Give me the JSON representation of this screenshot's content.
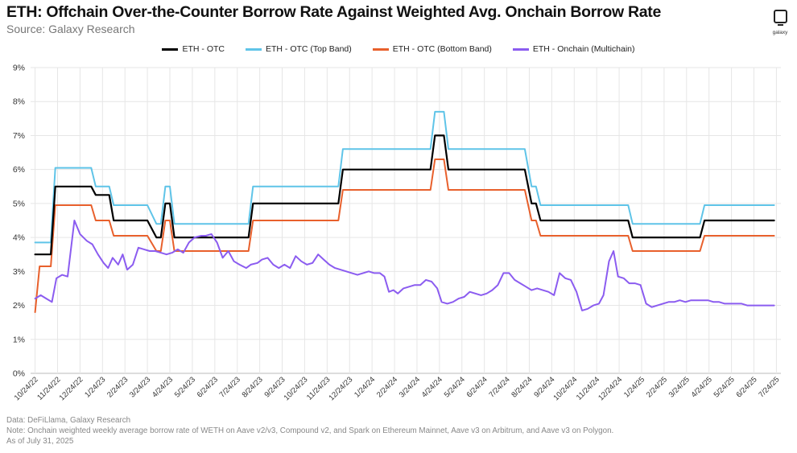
{
  "title": "ETH: Offchain Over-the-Counter Borrow Rate Against Weighted Avg. Onchain Borrow Rate",
  "subtitle": "Source: Galaxy Research",
  "logo": {
    "text": "galaxy",
    "icon": "galaxy-logo-icon"
  },
  "footnotes": {
    "data_source": "Data: DeFiLlama, Galaxy Research",
    "note": "Note: Onchain weighted weekly average borrow rate of WETH on Aave v2/v3, Compound v2, and Spark on Ethereum Mainnet, Aave v3 on Arbitrum, and Aave v3 on Polygon.",
    "as_of": "As of July 31, 2025"
  },
  "chart_data": {
    "type": "line",
    "title": "ETH: Offchain Over-the-Counter Borrow Rate Against Weighted Avg. Onchain Borrow Rate",
    "xlabel": "",
    "ylabel": "",
    "x_unit": "months since 10/24/22",
    "xlim": [
      -0.2,
      33.2
    ],
    "ylim": [
      0,
      9
    ],
    "y_ticks": [
      0,
      1,
      2,
      3,
      4,
      5,
      6,
      7,
      8,
      9
    ],
    "y_tick_labels": [
      "0%",
      "1%",
      "2%",
      "3%",
      "4%",
      "5%",
      "6%",
      "7%",
      "8%",
      "9%"
    ],
    "x_tick_labels": [
      "10/24/22",
      "11/24/22",
      "12/24/22",
      "1/24/23",
      "2/24/23",
      "3/24/23",
      "4/24/23",
      "5/24/23",
      "6/24/23",
      "7/24/23",
      "8/24/23",
      "9/24/23",
      "10/24/23",
      "11/24/23",
      "12/24/23",
      "1/24/24",
      "2/24/24",
      "3/24/24",
      "4/24/24",
      "5/24/24",
      "6/24/24",
      "7/24/24",
      "8/24/24",
      "9/24/24",
      "10/24/24",
      "11/24/24",
      "12/24/24",
      "1/24/25",
      "2/24/25",
      "3/24/25",
      "4/24/25",
      "5/24/25",
      "6/24/25",
      "7/24/25"
    ],
    "grid": true,
    "legend_position": "top-center",
    "series": [
      {
        "name": "ETH - OTC",
        "color": "#000000",
        "points": [
          [
            0,
            3.5
          ],
          [
            0.7,
            3.5
          ],
          [
            0.9,
            5.5
          ],
          [
            2.5,
            5.5
          ],
          [
            2.7,
            5.25
          ],
          [
            3.3,
            5.25
          ],
          [
            3.5,
            4.5
          ],
          [
            4.3,
            4.5
          ],
          [
            5,
            4.5
          ],
          [
            5.4,
            4
          ],
          [
            5.6,
            4
          ],
          [
            5.8,
            5
          ],
          [
            6,
            5
          ],
          [
            6.2,
            4
          ],
          [
            8.8,
            4
          ],
          [
            9.5,
            4
          ],
          [
            9.7,
            5
          ],
          [
            13.5,
            5
          ],
          [
            13.7,
            6
          ],
          [
            17.6,
            6
          ],
          [
            17.8,
            7
          ],
          [
            18.2,
            7
          ],
          [
            18.4,
            6
          ],
          [
            21.8,
            6
          ],
          [
            22.1,
            5
          ],
          [
            22.3,
            5
          ],
          [
            22.5,
            4.5
          ],
          [
            26.4,
            4.5
          ],
          [
            26.6,
            4
          ],
          [
            29.6,
            4
          ],
          [
            29.8,
            4.5
          ],
          [
            32.9,
            4.5
          ]
        ]
      },
      {
        "name": "ETH - OTC (Top Band)",
        "color": "#5fc4e8",
        "points": [
          [
            0,
            3.85
          ],
          [
            0.7,
            3.85
          ],
          [
            0.9,
            6.05
          ],
          [
            2.5,
            6.05
          ],
          [
            2.7,
            5.5
          ],
          [
            3.3,
            5.5
          ],
          [
            3.5,
            4.95
          ],
          [
            5,
            4.95
          ],
          [
            5.4,
            4.4
          ],
          [
            5.6,
            4.4
          ],
          [
            5.8,
            5.5
          ],
          [
            6,
            5.5
          ],
          [
            6.2,
            4.4
          ],
          [
            8.8,
            4.4
          ],
          [
            9.5,
            4.4
          ],
          [
            9.7,
            5.5
          ],
          [
            13.5,
            5.5
          ],
          [
            13.7,
            6.6
          ],
          [
            17.6,
            6.6
          ],
          [
            17.8,
            7.7
          ],
          [
            18.2,
            7.7
          ],
          [
            18.4,
            6.6
          ],
          [
            21.8,
            6.6
          ],
          [
            22.1,
            5.5
          ],
          [
            22.3,
            5.5
          ],
          [
            22.5,
            4.95
          ],
          [
            26.4,
            4.95
          ],
          [
            26.6,
            4.4
          ],
          [
            29.6,
            4.4
          ],
          [
            29.8,
            4.95
          ],
          [
            32.9,
            4.95
          ]
        ]
      },
      {
        "name": "ETH - OTC (Bottom Band)",
        "color": "#e8602c",
        "points": [
          [
            0,
            1.8
          ],
          [
            0.2,
            3.15
          ],
          [
            0.7,
            3.15
          ],
          [
            0.9,
            4.95
          ],
          [
            2.5,
            4.95
          ],
          [
            2.7,
            4.5
          ],
          [
            3.3,
            4.5
          ],
          [
            3.5,
            4.05
          ],
          [
            5,
            4.05
          ],
          [
            5.4,
            3.6
          ],
          [
            5.6,
            3.6
          ],
          [
            5.8,
            4.5
          ],
          [
            6,
            4.5
          ],
          [
            6.2,
            3.6
          ],
          [
            8.8,
            3.6
          ],
          [
            9.5,
            3.6
          ],
          [
            9.7,
            4.5
          ],
          [
            13.5,
            4.5
          ],
          [
            13.7,
            5.4
          ],
          [
            17.6,
            5.4
          ],
          [
            17.8,
            6.3
          ],
          [
            18.2,
            6.3
          ],
          [
            18.4,
            5.4
          ],
          [
            21.8,
            5.4
          ],
          [
            22.1,
            4.5
          ],
          [
            22.3,
            4.5
          ],
          [
            22.5,
            4.05
          ],
          [
            26.4,
            4.05
          ],
          [
            26.6,
            3.6
          ],
          [
            29.6,
            3.6
          ],
          [
            29.8,
            4.05
          ],
          [
            32.9,
            4.05
          ]
        ]
      },
      {
        "name": "ETH - Onchain (Multichain)",
        "color": "#8b5cf0",
        "points": [
          [
            0,
            2.2
          ],
          [
            0.25,
            2.3
          ],
          [
            0.5,
            2.2
          ],
          [
            0.75,
            2.1
          ],
          [
            0.95,
            2.8
          ],
          [
            1.2,
            2.9
          ],
          [
            1.45,
            2.85
          ],
          [
            1.75,
            4.5
          ],
          [
            2.0,
            4.1
          ],
          [
            2.3,
            3.9
          ],
          [
            2.55,
            3.8
          ],
          [
            2.8,
            3.5
          ],
          [
            3.05,
            3.25
          ],
          [
            3.25,
            3.1
          ],
          [
            3.45,
            3.4
          ],
          [
            3.7,
            3.2
          ],
          [
            3.9,
            3.5
          ],
          [
            4.1,
            3.05
          ],
          [
            4.35,
            3.2
          ],
          [
            4.6,
            3.7
          ],
          [
            4.85,
            3.65
          ],
          [
            5.1,
            3.6
          ],
          [
            5.35,
            3.6
          ],
          [
            5.6,
            3.55
          ],
          [
            5.85,
            3.5
          ],
          [
            6.1,
            3.55
          ],
          [
            6.35,
            3.65
          ],
          [
            6.6,
            3.55
          ],
          [
            6.85,
            3.85
          ],
          [
            7.1,
            4.0
          ],
          [
            7.4,
            4.05
          ],
          [
            7.6,
            4.05
          ],
          [
            7.85,
            4.1
          ],
          [
            8.1,
            3.85
          ],
          [
            8.35,
            3.4
          ],
          [
            8.6,
            3.6
          ],
          [
            8.85,
            3.3
          ],
          [
            9.1,
            3.2
          ],
          [
            9.4,
            3.1
          ],
          [
            9.6,
            3.2
          ],
          [
            9.9,
            3.25
          ],
          [
            10.1,
            3.35
          ],
          [
            10.35,
            3.4
          ],
          [
            10.6,
            3.2
          ],
          [
            10.85,
            3.1
          ],
          [
            11.1,
            3.2
          ],
          [
            11.35,
            3.1
          ],
          [
            11.6,
            3.45
          ],
          [
            11.85,
            3.3
          ],
          [
            12.1,
            3.2
          ],
          [
            12.35,
            3.25
          ],
          [
            12.6,
            3.5
          ],
          [
            12.85,
            3.35
          ],
          [
            13.1,
            3.2
          ],
          [
            13.35,
            3.1
          ],
          [
            13.6,
            3.05
          ],
          [
            13.85,
            3.0
          ],
          [
            14.1,
            2.95
          ],
          [
            14.35,
            2.9
          ],
          [
            14.6,
            2.95
          ],
          [
            14.85,
            3.0
          ],
          [
            15.1,
            2.95
          ],
          [
            15.35,
            2.95
          ],
          [
            15.55,
            2.85
          ],
          [
            15.75,
            2.4
          ],
          [
            15.95,
            2.45
          ],
          [
            16.15,
            2.35
          ],
          [
            16.4,
            2.5
          ],
          [
            16.65,
            2.55
          ],
          [
            16.9,
            2.6
          ],
          [
            17.15,
            2.6
          ],
          [
            17.4,
            2.75
          ],
          [
            17.65,
            2.7
          ],
          [
            17.9,
            2.5
          ],
          [
            18.1,
            2.1
          ],
          [
            18.35,
            2.05
          ],
          [
            18.6,
            2.1
          ],
          [
            18.85,
            2.2
          ],
          [
            19.1,
            2.25
          ],
          [
            19.35,
            2.4
          ],
          [
            19.6,
            2.35
          ],
          [
            19.85,
            2.3
          ],
          [
            20.1,
            2.35
          ],
          [
            20.35,
            2.45
          ],
          [
            20.6,
            2.6
          ],
          [
            20.85,
            2.95
          ],
          [
            21.1,
            2.95
          ],
          [
            21.35,
            2.75
          ],
          [
            21.6,
            2.65
          ],
          [
            21.85,
            2.55
          ],
          [
            22.1,
            2.45
          ],
          [
            22.35,
            2.5
          ],
          [
            22.6,
            2.45
          ],
          [
            22.85,
            2.4
          ],
          [
            23.1,
            2.3
          ],
          [
            23.35,
            2.95
          ],
          [
            23.6,
            2.8
          ],
          [
            23.85,
            2.75
          ],
          [
            24.1,
            2.4
          ],
          [
            24.35,
            1.85
          ],
          [
            24.6,
            1.9
          ],
          [
            24.85,
            2.0
          ],
          [
            25.1,
            2.05
          ],
          [
            25.3,
            2.3
          ],
          [
            25.55,
            3.3
          ],
          [
            25.75,
            3.6
          ],
          [
            25.95,
            2.85
          ],
          [
            26.2,
            2.8
          ],
          [
            26.45,
            2.65
          ],
          [
            26.7,
            2.65
          ],
          [
            26.95,
            2.6
          ],
          [
            27.2,
            2.05
          ],
          [
            27.45,
            1.95
          ],
          [
            27.7,
            2.0
          ],
          [
            27.95,
            2.05
          ],
          [
            28.2,
            2.1
          ],
          [
            28.45,
            2.1
          ],
          [
            28.7,
            2.15
          ],
          [
            28.95,
            2.1
          ],
          [
            29.2,
            2.15
          ],
          [
            29.45,
            2.15
          ],
          [
            29.7,
            2.15
          ],
          [
            29.95,
            2.15
          ],
          [
            30.2,
            2.1
          ],
          [
            30.45,
            2.1
          ],
          [
            30.7,
            2.05
          ],
          [
            30.95,
            2.05
          ],
          [
            31.2,
            2.05
          ],
          [
            31.45,
            2.05
          ],
          [
            31.7,
            2.0
          ],
          [
            31.95,
            2.0
          ],
          [
            32.2,
            2.0
          ],
          [
            32.45,
            2.0
          ],
          [
            32.7,
            2.0
          ],
          [
            32.9,
            2.0
          ]
        ]
      }
    ]
  }
}
